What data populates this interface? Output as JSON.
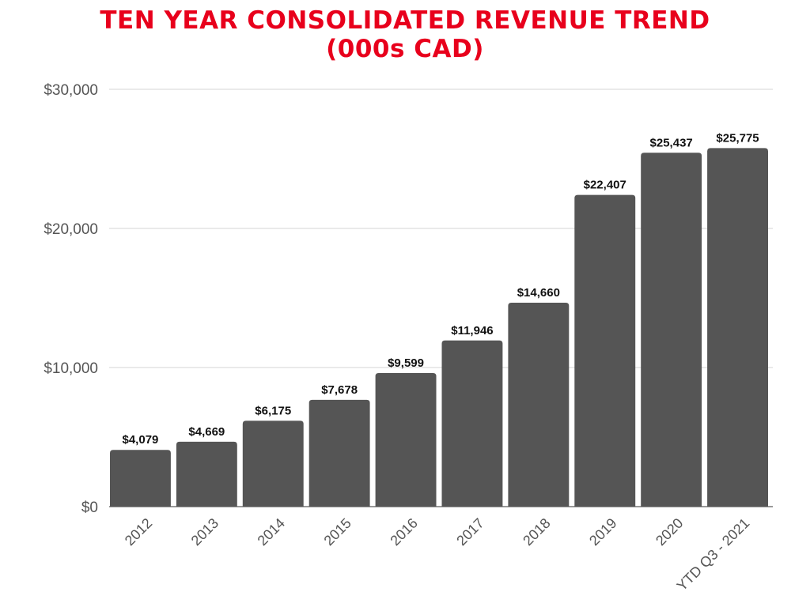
{
  "chart_data": {
    "type": "bar",
    "title_line1": "TEN YEAR CONSOLIDATED REVENUE TREND",
    "title_line2": "(000s CAD)",
    "xlabel": "",
    "ylabel": "",
    "categories": [
      "2012",
      "2013",
      "2014",
      "2015",
      "2016",
      "2017",
      "2018",
      "2019",
      "2020",
      "YTD Q3 - 2021"
    ],
    "values": [
      4079,
      4669,
      6175,
      7678,
      9599,
      11946,
      14660,
      22407,
      25437,
      25775
    ],
    "data_labels": [
      "$4,079",
      "$4,669",
      "$6,175",
      "$7,678",
      "$9,599",
      "$11,946",
      "$14,660",
      "$22,407",
      "$25,437",
      "$25,775"
    ],
    "ylim": [
      0,
      30000
    ],
    "y_ticks": [
      0,
      10000,
      20000,
      30000
    ],
    "y_tick_labels": [
      "$0",
      "$10,000",
      "$20,000",
      "$30,000"
    ],
    "grid": true,
    "legend": "none",
    "colors": {
      "bar": "#555555",
      "title": "#e8001c"
    }
  }
}
